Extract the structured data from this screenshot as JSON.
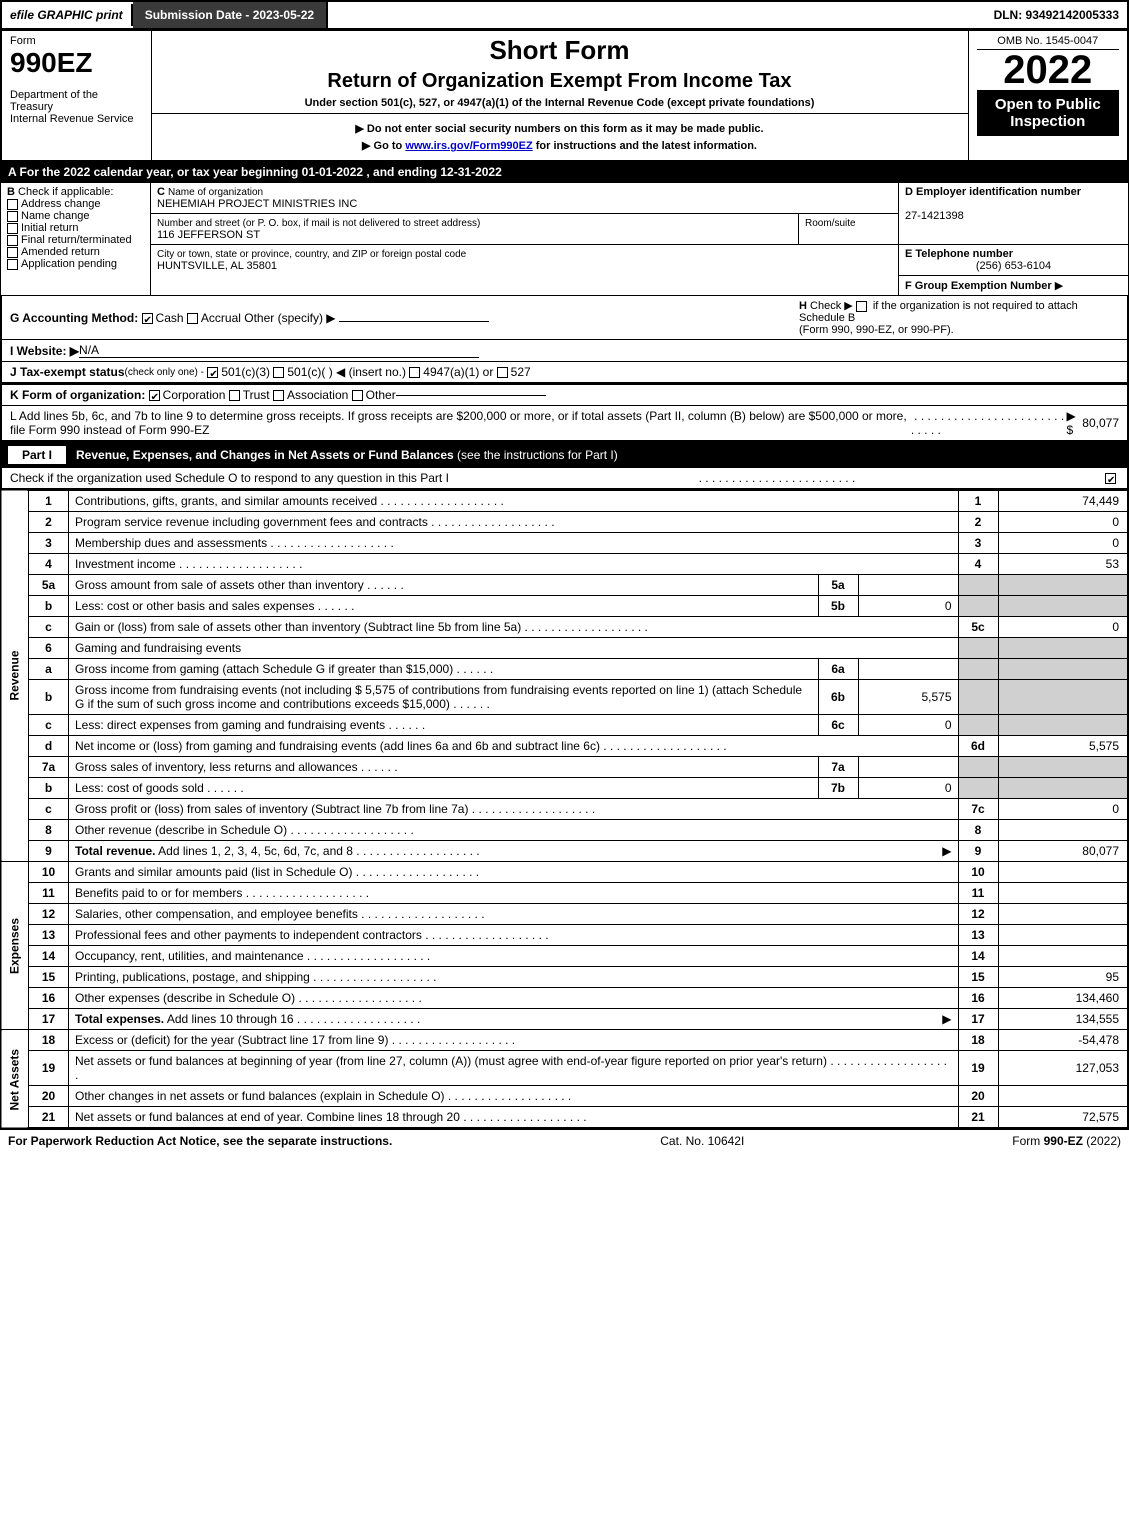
{
  "topbar": {
    "efile": "efile GRAPHIC print",
    "submission": "Submission Date - 2023-05-22",
    "dln": "DLN: 93492142005333"
  },
  "header": {
    "form_label": "Form",
    "form_number": "990EZ",
    "dept1": "Department of the Treasury",
    "dept2": "Internal Revenue Service",
    "short_form": "Short Form",
    "title": "Return of Organization Exempt From Income Tax",
    "subtitle": "Under section 501(c), 527, or 4947(a)(1) of the Internal Revenue Code (except private foundations)",
    "instruction1": "▶ Do not enter social security numbers on this form as it may be made public.",
    "instruction2_prefix": "▶ Go to ",
    "instruction2_link": "www.irs.gov/Form990EZ",
    "instruction2_suffix": " for instructions and the latest information.",
    "omb": "OMB No. 1545-0047",
    "year": "2022",
    "inspection": "Open to Public Inspection"
  },
  "section_a": "A  For the 2022 calendar year, or tax year beginning 01-01-2022 , and ending 12-31-2022",
  "section_b": {
    "label": "B",
    "check_label": "Check if applicable:",
    "items": [
      "Address change",
      "Name change",
      "Initial return",
      "Final return/terminated",
      "Amended return",
      "Application pending"
    ]
  },
  "section_c": {
    "label_c": "C",
    "name_label": "Name of organization",
    "name": "NEHEMIAH PROJECT MINISTRIES INC",
    "street_label": "Number and street (or P. O. box, if mail is not delivered to street address)",
    "room_label": "Room/suite",
    "street": "116 JEFFERSON ST",
    "city_label": "City or town, state or province, country, and ZIP or foreign postal code",
    "city": "HUNTSVILLE, AL  35801"
  },
  "section_d": {
    "label": "D Employer identification number",
    "value": "27-1421398"
  },
  "section_e": {
    "label": "E Telephone number",
    "value": "(256) 653-6104"
  },
  "section_f": {
    "label": "F Group Exemption Number",
    "arrow": "▶"
  },
  "section_g": {
    "label": "G Accounting Method:",
    "cash": "Cash",
    "accrual": "Accrual",
    "other": "Other (specify) ▶"
  },
  "section_h": {
    "label": "H",
    "text": "Check ▶",
    "text2": "if the organization is not required to attach Schedule B",
    "text3": "(Form 990, 990-EZ, or 990-PF)."
  },
  "section_i": {
    "label": "I Website: ▶",
    "value": "N/A"
  },
  "section_j": {
    "label": "J Tax-exempt status",
    "sub": "(check only one) -",
    "opt1": "501(c)(3)",
    "opt2": "501(c)(  ) ◀ (insert no.)",
    "opt3": "4947(a)(1) or",
    "opt4": "527"
  },
  "section_k": {
    "label": "K Form of organization:",
    "opts": [
      "Corporation",
      "Trust",
      "Association",
      "Other"
    ]
  },
  "section_l": {
    "text": "L Add lines 5b, 6c, and 7b to line 9 to determine gross receipts. If gross receipts are $200,000 or more, or if total assets (Part II, column (B) below) are $500,000 or more, file Form 990 instead of Form 990-EZ",
    "amount_prefix": "▶ $",
    "amount": "80,077"
  },
  "part1": {
    "label": "Part I",
    "title": "Revenue, Expenses, and Changes in Net Assets or Fund Balances",
    "sub": "(see the instructions for Part I)",
    "check_text": "Check if the organization used Schedule O to respond to any question in this Part I"
  },
  "revenue": {
    "side": "Revenue",
    "lines": [
      {
        "n": "1",
        "text": "Contributions, gifts, grants, and similar amounts received",
        "ln": "1",
        "amt": "74,449"
      },
      {
        "n": "2",
        "text": "Program service revenue including government fees and contracts",
        "ln": "2",
        "amt": "0"
      },
      {
        "n": "3",
        "text": "Membership dues and assessments",
        "ln": "3",
        "amt": "0"
      },
      {
        "n": "4",
        "text": "Investment income",
        "ln": "4",
        "amt": "53"
      },
      {
        "n": "5a",
        "text": "Gross amount from sale of assets other than inventory",
        "sub_ln": "5a",
        "sub_amt": ""
      },
      {
        "n": "b",
        "text": "Less: cost or other basis and sales expenses",
        "sub_ln": "5b",
        "sub_amt": "0"
      },
      {
        "n": "c",
        "text": "Gain or (loss) from sale of assets other than inventory (Subtract line 5b from line 5a)",
        "ln": "5c",
        "amt": "0"
      },
      {
        "n": "6",
        "text": "Gaming and fundraising events"
      },
      {
        "n": "a",
        "text": "Gross income from gaming (attach Schedule G if greater than $15,000)",
        "sub_ln": "6a",
        "sub_amt": ""
      },
      {
        "n": "b",
        "text_multi": "Gross income from fundraising events (not including $  5,575 of contributions from fundraising events reported on line 1) (attach Schedule G if the sum of such gross income and contributions exceeds $15,000)",
        "sub_ln": "6b",
        "sub_amt": "5,575"
      },
      {
        "n": "c",
        "text": "Less: direct expenses from gaming and fundraising events",
        "sub_ln": "6c",
        "sub_amt": "0"
      },
      {
        "n": "d",
        "text": "Net income or (loss) from gaming and fundraising events (add lines 6a and 6b and subtract line 6c)",
        "ln": "6d",
        "amt": "5,575"
      },
      {
        "n": "7a",
        "text": "Gross sales of inventory, less returns and allowances",
        "sub_ln": "7a",
        "sub_amt": ""
      },
      {
        "n": "b",
        "text": "Less: cost of goods sold",
        "sub_ln": "7b",
        "sub_amt": "0"
      },
      {
        "n": "c",
        "text": "Gross profit or (loss) from sales of inventory (Subtract line 7b from line 7a)",
        "ln": "7c",
        "amt": "0"
      },
      {
        "n": "8",
        "text": "Other revenue (describe in Schedule O)",
        "ln": "8",
        "amt": ""
      },
      {
        "n": "9",
        "text_bold": "Total revenue.",
        "text": " Add lines 1, 2, 3, 4, 5c, 6d, 7c, and 8",
        "arrow": true,
        "ln": "9",
        "amt": "80,077"
      }
    ]
  },
  "expenses": {
    "side": "Expenses",
    "lines": [
      {
        "n": "10",
        "text": "Grants and similar amounts paid (list in Schedule O)",
        "ln": "10",
        "amt": ""
      },
      {
        "n": "11",
        "text": "Benefits paid to or for members",
        "ln": "11",
        "amt": ""
      },
      {
        "n": "12",
        "text": "Salaries, other compensation, and employee benefits",
        "ln": "12",
        "amt": ""
      },
      {
        "n": "13",
        "text": "Professional fees and other payments to independent contractors",
        "ln": "13",
        "amt": ""
      },
      {
        "n": "14",
        "text": "Occupancy, rent, utilities, and maintenance",
        "ln": "14",
        "amt": ""
      },
      {
        "n": "15",
        "text": "Printing, publications, postage, and shipping",
        "ln": "15",
        "amt": "95"
      },
      {
        "n": "16",
        "text": "Other expenses (describe in Schedule O)",
        "ln": "16",
        "amt": "134,460"
      },
      {
        "n": "17",
        "text_bold": "Total expenses.",
        "text": " Add lines 10 through 16",
        "arrow": true,
        "ln": "17",
        "amt": "134,555"
      }
    ]
  },
  "netassets": {
    "side": "Net Assets",
    "lines": [
      {
        "n": "18",
        "text": "Excess or (deficit) for the year (Subtract line 17 from line 9)",
        "ln": "18",
        "amt": "-54,478"
      },
      {
        "n": "19",
        "text": "Net assets or fund balances at beginning of year (from line 27, column (A)) (must agree with end-of-year figure reported on prior year's return)",
        "ln": "19",
        "amt": "127,053"
      },
      {
        "n": "20",
        "text": "Other changes in net assets or fund balances (explain in Schedule O)",
        "ln": "20",
        "amt": ""
      },
      {
        "n": "21",
        "text": "Net assets or fund balances at end of year. Combine lines 18 through 20",
        "ln": "21",
        "amt": "72,575"
      }
    ]
  },
  "footer": {
    "left": "For Paperwork Reduction Act Notice, see the separate instructions.",
    "center": "Cat. No. 10642I",
    "right_prefix": "Form ",
    "right_form": "990-EZ",
    "right_suffix": " (2022)"
  }
}
